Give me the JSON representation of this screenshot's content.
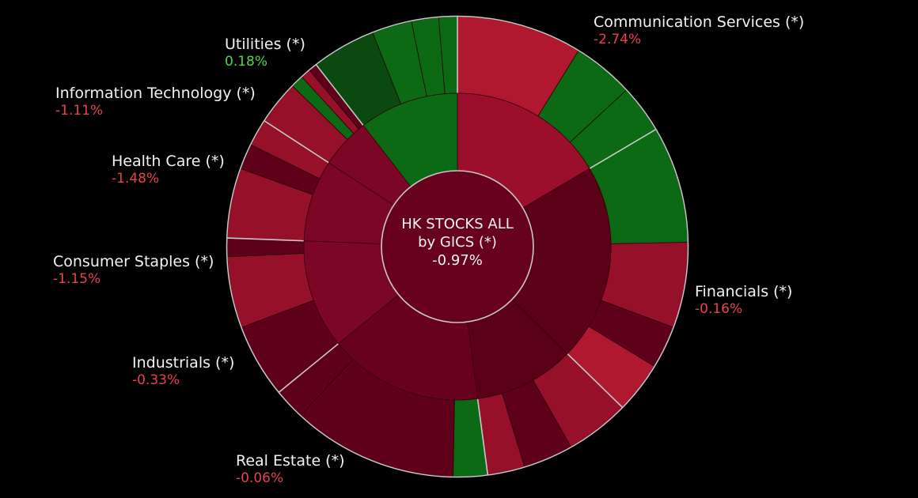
{
  "chart_data": {
    "type": "sunburst",
    "center": {
      "title_line1": "HK STOCKS ALL",
      "title_line2": "by GICS (*)",
      "change": "-0.97%"
    },
    "colors": {
      "neg_strong": "#b01830",
      "neg_mid": "#951028",
      "neg_deep": "#5e0019",
      "neg_base": "#7a0823",
      "pos": "#0c6a14",
      "pos_dark": "#0a4a10",
      "separator": "#c8c8c8"
    },
    "sectors": [
      {
        "name": "Communication Services (*)",
        "change": "-2.74%",
        "change_value": -2.74,
        "weight": 16.5
      },
      {
        "name": "Financials (*)",
        "change": "-0.16%",
        "change_value": -0.16,
        "weight": 20.8
      },
      {
        "name": "Real Estate (*)",
        "change": "-0.06%",
        "change_value": -0.06,
        "weight": 10.6
      },
      {
        "name": "Industrials (*)",
        "change": "-0.33%",
        "change_value": -0.33,
        "weight": 16.2
      },
      {
        "name": "Consumer Staples (*)",
        "change": "-1.15%",
        "change_value": -1.15,
        "weight": 11.5
      },
      {
        "name": "Health Care (*)",
        "change": "-1.48%",
        "change_value": -1.48,
        "weight": 8.6
      },
      {
        "name": "Information Technology (*)",
        "change": "-1.11%",
        "change_value": -1.11,
        "weight": 5.3
      },
      {
        "name": "Utilities (*)",
        "change": "0.18%",
        "change_value": 0.18,
        "weight": 10.5
      }
    ],
    "outer_segments": [
      [
        {
          "w": 8.8,
          "tone": "neg_strong"
        },
        {
          "w": 4.3,
          "tone": "pos"
        },
        {
          "w": 3.4,
          "tone": "pos"
        }
      ],
      [
        {
          "w": 8.2,
          "tone": "pos"
        },
        {
          "w": 6.0,
          "tone": "neg_mid"
        },
        {
          "w": 3.0,
          "tone": "neg_deep"
        },
        {
          "w": 3.6,
          "tone": "neg_strong"
        }
      ],
      [
        {
          "w": 4.5,
          "tone": "neg_mid"
        },
        {
          "w": 3.5,
          "tone": "neg_deep"
        },
        {
          "w": 2.6,
          "tone": "neg_mid"
        }
      ],
      [
        {
          "w": 2.4,
          "tone": "pos"
        },
        {
          "w": 11.6,
          "tone": "neg_deep"
        },
        {
          "w": 2.2,
          "tone": "neg_deep"
        }
      ],
      [
        {
          "w": 5.2,
          "tone": "neg_deep"
        },
        {
          "w": 5.0,
          "tone": "neg_mid"
        },
        {
          "w": 1.3,
          "tone": "neg_deep"
        }
      ],
      [
        {
          "w": 4.9,
          "tone": "neg_mid"
        },
        {
          "w": 1.8,
          "tone": "neg_deep"
        },
        {
          "w": 1.9,
          "tone": "neg_mid"
        }
      ],
      [
        {
          "w": 3.1,
          "tone": "neg_mid"
        },
        {
          "w": 0.9,
          "tone": "pos"
        },
        {
          "w": 0.7,
          "tone": "neg_mid"
        },
        {
          "w": 0.6,
          "tone": "neg_deep"
        }
      ],
      [
        {
          "w": 4.5,
          "tone": "pos_dark"
        },
        {
          "w": 2.8,
          "tone": "pos"
        },
        {
          "w": 1.9,
          "tone": "pos"
        },
        {
          "w": 1.3,
          "tone": "pos"
        }
      ]
    ]
  }
}
